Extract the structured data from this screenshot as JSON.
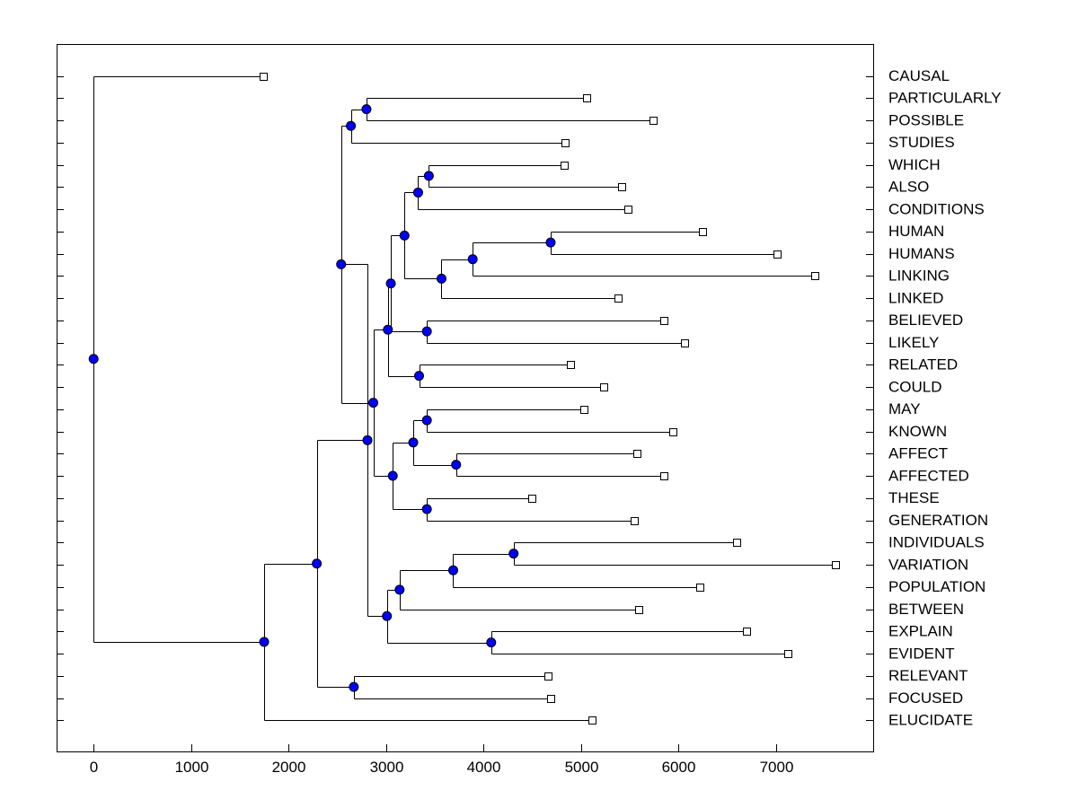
{
  "chart_data": {
    "type": "dendrogram",
    "orientation": "horizontal",
    "title": "",
    "xlabel": "",
    "ylabel": "",
    "xlim": [
      -380,
      8000
    ],
    "xticks": [
      0,
      1000,
      2000,
      3000,
      4000,
      5000,
      6000,
      7000
    ],
    "node_color": "#0000ff",
    "leaf_color": "#ffffff",
    "line_color": "#000000",
    "leaves": [
      {
        "id": "L0",
        "label": "CAUSAL",
        "value": 1740
      },
      {
        "id": "L1",
        "label": "PARTICULARLY",
        "value": 5060
      },
      {
        "id": "L2",
        "label": "POSSIBLE",
        "value": 5740
      },
      {
        "id": "L3",
        "label": "STUDIES",
        "value": 4840
      },
      {
        "id": "L4",
        "label": "WHICH",
        "value": 4830
      },
      {
        "id": "L5",
        "label": "ALSO",
        "value": 5420
      },
      {
        "id": "L6",
        "label": "CONDITIONS",
        "value": 5480
      },
      {
        "id": "L7",
        "label": "HUMAN",
        "value": 6250
      },
      {
        "id": "L8",
        "label": "HUMANS",
        "value": 7010
      },
      {
        "id": "L9",
        "label": "LINKING",
        "value": 7400
      },
      {
        "id": "L10",
        "label": "LINKED",
        "value": 5380
      },
      {
        "id": "L11",
        "label": "BELIEVED",
        "value": 5850
      },
      {
        "id": "L12",
        "label": "LIKELY",
        "value": 6060
      },
      {
        "id": "L13",
        "label": "RELATED",
        "value": 4890
      },
      {
        "id": "L14",
        "label": "COULD",
        "value": 5230
      },
      {
        "id": "L15",
        "label": "MAY",
        "value": 5030
      },
      {
        "id": "L16",
        "label": "KNOWN",
        "value": 5940
      },
      {
        "id": "L17",
        "label": "AFFECT",
        "value": 5580
      },
      {
        "id": "L18",
        "label": "AFFECTED",
        "value": 5850
      },
      {
        "id": "L19",
        "label": "THESE",
        "value": 4500
      },
      {
        "id": "L20",
        "label": "GENERATION",
        "value": 5550
      },
      {
        "id": "L21",
        "label": "INDIVIDUALS",
        "value": 6600
      },
      {
        "id": "L22",
        "label": "VARIATION",
        "value": 7610
      },
      {
        "id": "L23",
        "label": "POPULATION",
        "value": 6220
      },
      {
        "id": "L24",
        "label": "BETWEEN",
        "value": 5590
      },
      {
        "id": "L25",
        "label": "EXPLAIN",
        "value": 6700
      },
      {
        "id": "L26",
        "label": "EVIDENT",
        "value": 7120
      },
      {
        "id": "L27",
        "label": "RELEVANT",
        "value": 4660
      },
      {
        "id": "L28",
        "label": "FOCUSED",
        "value": 4690
      },
      {
        "id": "L29",
        "label": "ELUCIDATE",
        "value": 5110
      }
    ],
    "merges": [
      {
        "id": "N1",
        "height": 2800,
        "children": [
          "L1",
          "L2"
        ]
      },
      {
        "id": "N2",
        "height": 2640,
        "children": [
          "N1",
          "L3"
        ]
      },
      {
        "id": "N3",
        "height": 3440,
        "children": [
          "L4",
          "L5"
        ]
      },
      {
        "id": "N4",
        "height": 3330,
        "children": [
          "N3",
          "L6"
        ]
      },
      {
        "id": "N5",
        "height": 4690,
        "children": [
          "L7",
          "L8"
        ]
      },
      {
        "id": "N6",
        "height": 3890,
        "children": [
          "N5",
          "L9"
        ]
      },
      {
        "id": "N7",
        "height": 3570,
        "children": [
          "N6",
          "L10"
        ]
      },
      {
        "id": "N8",
        "height": 3190,
        "children": [
          "N4",
          "N7"
        ]
      },
      {
        "id": "N9",
        "height": 3420,
        "children": [
          "L11",
          "L12"
        ]
      },
      {
        "id": "N10",
        "height": 3050,
        "children": [
          "N8",
          "N9"
        ]
      },
      {
        "id": "N11",
        "height": 3340,
        "children": [
          "L13",
          "L14"
        ]
      },
      {
        "id": "N12",
        "height": 3020,
        "children": [
          "N10",
          "N11"
        ]
      },
      {
        "id": "N13",
        "height": 3420,
        "children": [
          "L15",
          "L16"
        ]
      },
      {
        "id": "N14",
        "height": 3720,
        "children": [
          "L17",
          "L18"
        ]
      },
      {
        "id": "N15",
        "height": 3280,
        "children": [
          "N13",
          "N14"
        ]
      },
      {
        "id": "N16",
        "height": 3420,
        "children": [
          "L19",
          "L20"
        ]
      },
      {
        "id": "N17",
        "height": 3070,
        "children": [
          "N15",
          "N16"
        ]
      },
      {
        "id": "N18",
        "height": 2870,
        "children": [
          "N12",
          "N17"
        ]
      },
      {
        "id": "N19",
        "height": 2540,
        "children": [
          "N2",
          "N18"
        ]
      },
      {
        "id": "N20",
        "height": 4310,
        "children": [
          "L21",
          "L22"
        ]
      },
      {
        "id": "N21",
        "height": 3690,
        "children": [
          "N20",
          "L23"
        ]
      },
      {
        "id": "N22",
        "height": 3140,
        "children": [
          "N21",
          "L24"
        ]
      },
      {
        "id": "N23",
        "height": 4080,
        "children": [
          "L25",
          "L26"
        ]
      },
      {
        "id": "N24",
        "height": 3010,
        "children": [
          "N22",
          "N23"
        ]
      },
      {
        "id": "N25",
        "height": 2810,
        "children": [
          "N19",
          "N24"
        ]
      },
      {
        "id": "N26",
        "height": 2670,
        "children": [
          "L27",
          "L28"
        ]
      },
      {
        "id": "N27",
        "height": 2290,
        "children": [
          "N25",
          "N26"
        ]
      },
      {
        "id": "N28",
        "height": 1750,
        "children": [
          "N27",
          "L29"
        ]
      },
      {
        "id": "N29",
        "height": 0,
        "children": [
          "L0",
          "N28"
        ]
      }
    ]
  }
}
